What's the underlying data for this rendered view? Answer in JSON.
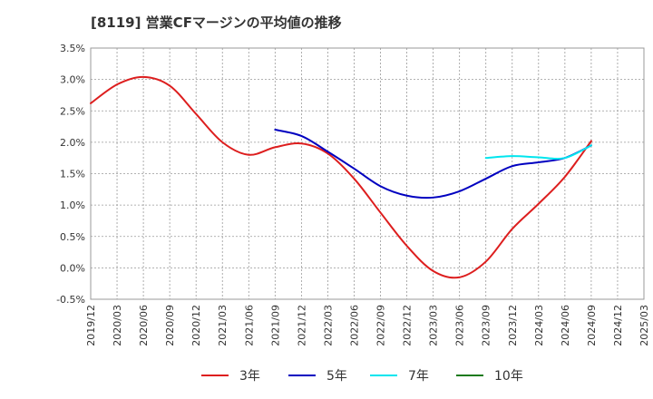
{
  "chart_data": {
    "type": "line",
    "title": "[8119]  営業CFマージンの平均値の推移",
    "xlabel": "",
    "ylabel": "",
    "x_ticks": [
      "2019/12",
      "2020/03",
      "2020/06",
      "2020/09",
      "2020/12",
      "2021/03",
      "2021/06",
      "2021/09",
      "2021/12",
      "2022/03",
      "2022/06",
      "2022/09",
      "2022/12",
      "2023/03",
      "2023/06",
      "2023/09",
      "2023/12",
      "2024/03",
      "2024/06",
      "2024/09",
      "2024/12",
      "2025/03"
    ],
    "y_ticks": [
      "3.5%",
      "3.0%",
      "2.5%",
      "2.0%",
      "1.5%",
      "1.0%",
      "0.5%",
      "0.0%",
      "-0.5%"
    ],
    "ylim": [
      -0.5,
      3.5
    ],
    "grid": true,
    "legend_position": "bottom",
    "series": [
      {
        "name": "3年",
        "color": "#dd1e1e",
        "x": [
          "2019/12",
          "2020/03",
          "2020/06",
          "2020/09",
          "2020/12",
          "2021/03",
          "2021/06",
          "2021/09",
          "2021/12",
          "2022/03",
          "2022/06",
          "2022/09",
          "2022/12",
          "2023/03",
          "2023/06",
          "2023/09",
          "2023/12",
          "2024/03",
          "2024/06",
          "2024/09"
        ],
        "values": [
          2.62,
          2.92,
          3.04,
          2.9,
          2.45,
          2.0,
          1.8,
          1.92,
          1.98,
          1.82,
          1.42,
          0.88,
          0.35,
          -0.05,
          -0.15,
          0.1,
          0.62,
          1.02,
          1.45,
          2.02
        ]
      },
      {
        "name": "5年",
        "color": "#0000c0",
        "x": [
          "2021/09",
          "2021/12",
          "2022/03",
          "2022/06",
          "2022/09",
          "2022/12",
          "2023/03",
          "2023/06",
          "2023/09",
          "2023/12",
          "2024/03",
          "2024/06",
          "2024/09"
        ],
        "values": [
          2.2,
          2.1,
          1.85,
          1.58,
          1.3,
          1.15,
          1.12,
          1.22,
          1.42,
          1.62,
          1.68,
          1.75,
          1.95
        ]
      },
      {
        "name": "7年",
        "color": "#00e5ee",
        "x": [
          "2023/09",
          "2023/12",
          "2024/03",
          "2024/06",
          "2024/09"
        ],
        "values": [
          1.75,
          1.78,
          1.76,
          1.75,
          1.95
        ]
      },
      {
        "name": "10年",
        "color": "#1a7a1a",
        "x": [],
        "values": []
      }
    ]
  }
}
